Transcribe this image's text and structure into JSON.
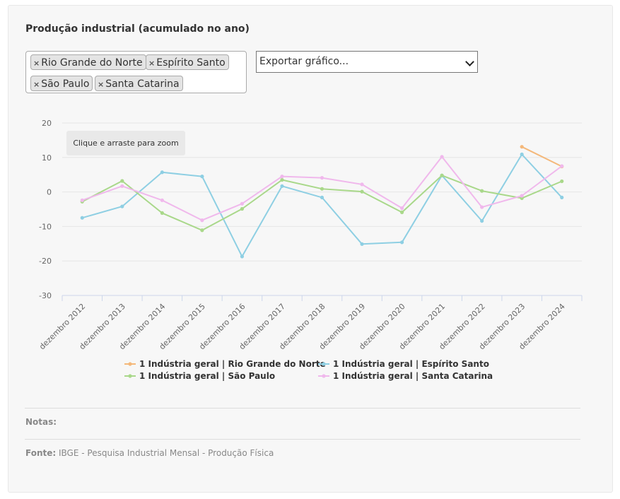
{
  "title": "Produção industrial (acumulado no ano)",
  "selected_states": [
    {
      "label": "Rio Grande do Norte",
      "remove": "×"
    },
    {
      "label": "Espírito Santo",
      "remove": "×"
    },
    {
      "label": "São Paulo",
      "remove": "×"
    },
    {
      "label": "Santa Catarina",
      "remove": "×"
    }
  ],
  "export": {
    "selected": "Exportar gráfico..."
  },
  "zoom_hint": "Clique e arraste para zoom",
  "notes_label": "Notas:",
  "source": {
    "label": "Fonte:",
    "text": "IBGE - Pesquisa Industrial Mensal - Produção Física"
  },
  "chart_data": {
    "type": "line",
    "categories": [
      "dezembro 2012",
      "dezembro 2013",
      "dezembro 2014",
      "dezembro 2015",
      "dezembro 2016",
      "dezembro 2017",
      "dezembro 2018",
      "dezembro 2019",
      "dezembro 2020",
      "dezembro 2021",
      "dezembro 2022",
      "dezembro 2023",
      "dezembro 2024"
    ],
    "ylim": [
      -30,
      20
    ],
    "yticks": [
      20,
      10,
      0,
      -10,
      -20,
      -30
    ],
    "grid": true,
    "legend_position": "bottom",
    "series": [
      {
        "name": "1 Indústria geral | Rio Grande do Norte",
        "color": "#f4b87a",
        "values": [
          null,
          null,
          null,
          null,
          null,
          null,
          null,
          null,
          null,
          null,
          null,
          13.1,
          7.4
        ]
      },
      {
        "name": "1 Indústria geral | Espírito Santo",
        "color": "#8ecfe3",
        "values": [
          -7.5,
          -4.2,
          5.7,
          4.5,
          -18.7,
          1.7,
          -1.6,
          -15.1,
          -14.6,
          4.8,
          -8.4,
          10.9,
          -1.6
        ]
      },
      {
        "name": "1 Indústria geral | São Paulo",
        "color": "#a9d88a",
        "values": [
          -2.8,
          3.2,
          -6.1,
          -11.1,
          -4.9,
          3.5,
          0.9,
          0.1,
          -5.9,
          4.8,
          0.3,
          -1.8,
          3.1
        ]
      },
      {
        "name": "1 Indústria geral | Santa Catarina",
        "color": "#f0b8ec",
        "values": [
          -2.4,
          1.7,
          -2.4,
          -8.2,
          -3.4,
          4.5,
          4.1,
          2.2,
          -4.7,
          10.2,
          -4.4,
          -1.1,
          7.5
        ]
      }
    ]
  }
}
